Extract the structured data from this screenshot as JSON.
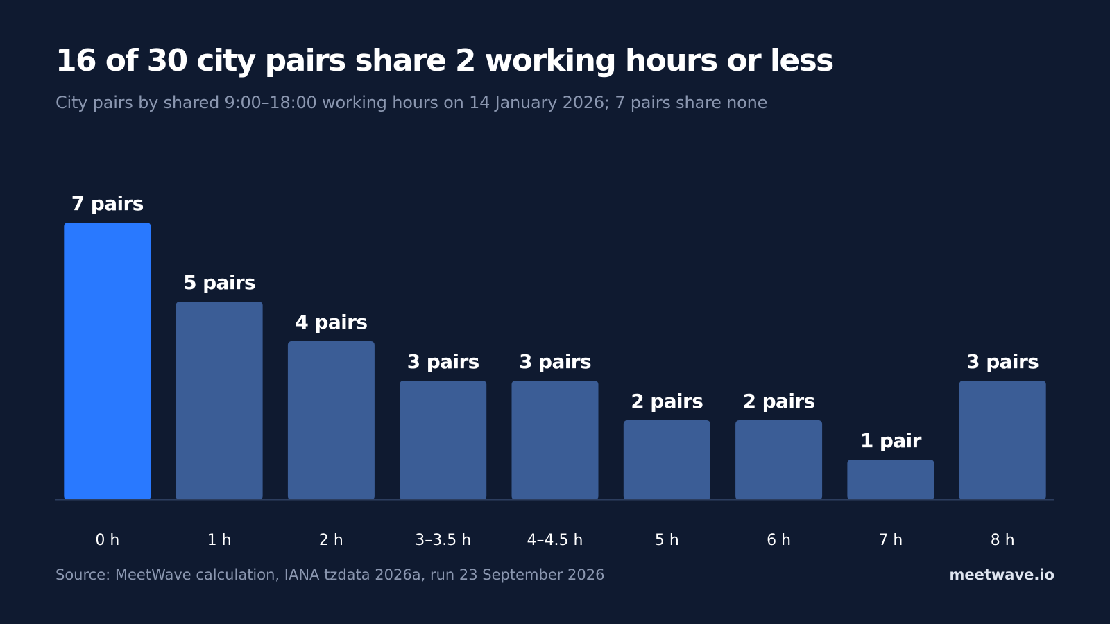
{
  "header": {
    "title": "16 of 30 city pairs share 2 working hours or less",
    "subtitle": "City pairs by shared 9:00–18:00 working hours on 14 January 2026; 7 pairs share none"
  },
  "chart_data": {
    "type": "bar",
    "categories": [
      "0 h",
      "1 h",
      "2 h",
      "3–3.5 h",
      "4–4.5 h",
      "5 h",
      "6 h",
      "7 h",
      "8 h"
    ],
    "values": [
      7,
      5,
      4,
      3,
      3,
      2,
      2,
      1,
      3
    ],
    "data_labels": [
      "7 pairs",
      "5 pairs",
      "4 pairs",
      "3 pairs",
      "3 pairs",
      "2 pairs",
      "2 pairs",
      "1 pair",
      "3 pairs"
    ],
    "title": "16 of 30 city pairs share 2 working hours or less",
    "subtitle": "City pairs by shared 9:00–18:00 working hours on 14 January 2026; 7 pairs share none",
    "xlabel": "",
    "ylabel": "",
    "ylim": [
      0,
      7
    ],
    "grid": false,
    "legend": "none",
    "colors": {
      "highlight": "#2979ff",
      "default": "#3b5d96",
      "baseline": "#2c3d5e",
      "background": "#0f1a30"
    },
    "highlight_index": 0
  },
  "footer": {
    "source": "Source: MeetWave calculation, IANA tzdata 2026a, run 23 September 2026",
    "brand": "meetwave.io"
  }
}
